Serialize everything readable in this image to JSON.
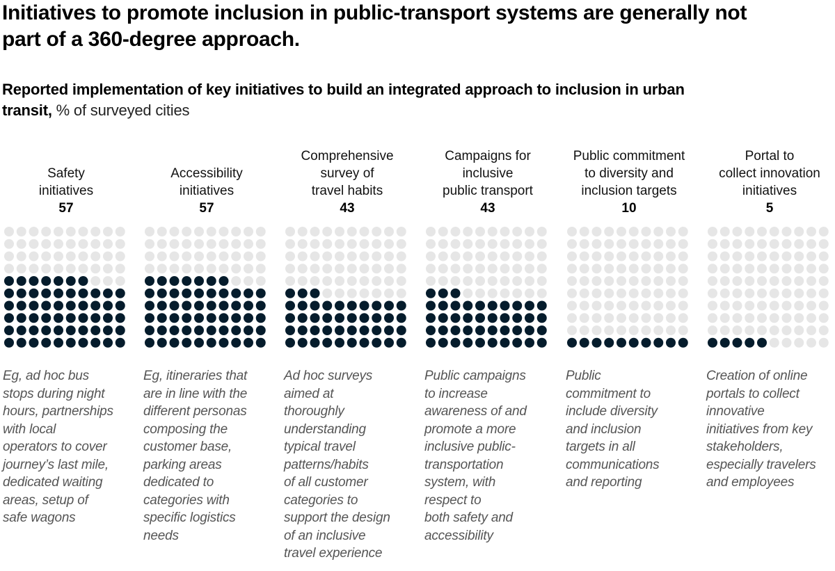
{
  "colors": {
    "filled": "#051C2C",
    "empty": "#E6E6E6",
    "description_text": "#555555"
  },
  "header": {
    "title_lines": [
      "Initiatives to promote inclusion in public-transport systems are generally not",
      "part of a 360-degree approach."
    ],
    "subtitle_bold_line1": "Reported implementation of key initiatives to build an integrated approach to inclusion in urban",
    "subtitle_bold_line2": "transit,",
    "subtitle_unit": " % of surveyed cities"
  },
  "chart_data": {
    "type": "waffle",
    "title": "Initiatives to promote inclusion in public-transport systems are generally not part of a 360-degree approach.",
    "subtitle": "Reported implementation of key initiatives to build an integrated approach to inclusion in urban transit, % of surveyed cities",
    "unit": "% of surveyed cities",
    "grid": "10x10 dots, filled from bottom-left",
    "categories": [
      "Safety initiatives",
      "Accessibility initiatives",
      "Comprehensive survey of travel habits",
      "Campaigns for inclusive public transport",
      "Public commitment to diversity and inclusion targets",
      "Portal to collect innovation initiatives"
    ],
    "values": [
      57,
      57,
      43,
      43,
      10,
      5
    ],
    "panels": [
      {
        "label_lines": [
          "Safety",
          "initiatives"
        ],
        "value": 57,
        "value_label": "57",
        "description_lines": [
          "Eg, ad hoc bus",
          "stops during night",
          "hours, partnerships",
          "with local",
          "operators to cover",
          "journey’s last mile,",
          "dedicated waiting",
          "areas, setup of",
          "safe wagons"
        ]
      },
      {
        "label_lines": [
          "Accessibility",
          "initiatives"
        ],
        "value": 57,
        "value_label": "57",
        "description_lines": [
          "Eg, itineraries that",
          "are in line with the",
          "different personas",
          "composing the",
          "customer base,",
          "parking areas",
          "dedicated to",
          "categories with",
          "specific logistics",
          "needs"
        ]
      },
      {
        "label_lines": [
          "Comprehensive",
          "survey of",
          "travel habits"
        ],
        "value": 43,
        "value_label": "43",
        "description_lines": [
          "Ad hoc surveys",
          "aimed at",
          "thoroughly",
          "understanding",
          "typical travel",
          "patterns/habits",
          "of all customer",
          "categories to",
          "support the design",
          "of an inclusive",
          "travel experience"
        ]
      },
      {
        "label_lines": [
          "Campaigns for",
          "inclusive",
          "public transport"
        ],
        "value": 43,
        "value_label": "43",
        "description_lines": [
          "Public campaigns",
          "to increase",
          "awareness of and",
          "promote a more",
          "inclusive public-",
          "transportation",
          "system, with",
          "respect to",
          "both safety and",
          "accessibility"
        ]
      },
      {
        "label_lines": [
          "Public commitment",
          "to diversity and",
          "inclusion targets"
        ],
        "value": 10,
        "value_label": "10",
        "description_lines": [
          "Public",
          "commitment to",
          "include diversity",
          "and inclusion",
          "targets in all",
          "communications",
          "and reporting"
        ]
      },
      {
        "label_lines": [
          "Portal to",
          "collect innovation",
          "initiatives"
        ],
        "value": 5,
        "value_label": "5",
        "description_lines": [
          "Creation of online",
          "portals to collect",
          "innovative",
          "initiatives from key",
          "stakeholders,",
          "especially travelers",
          "and employees"
        ]
      }
    ]
  }
}
